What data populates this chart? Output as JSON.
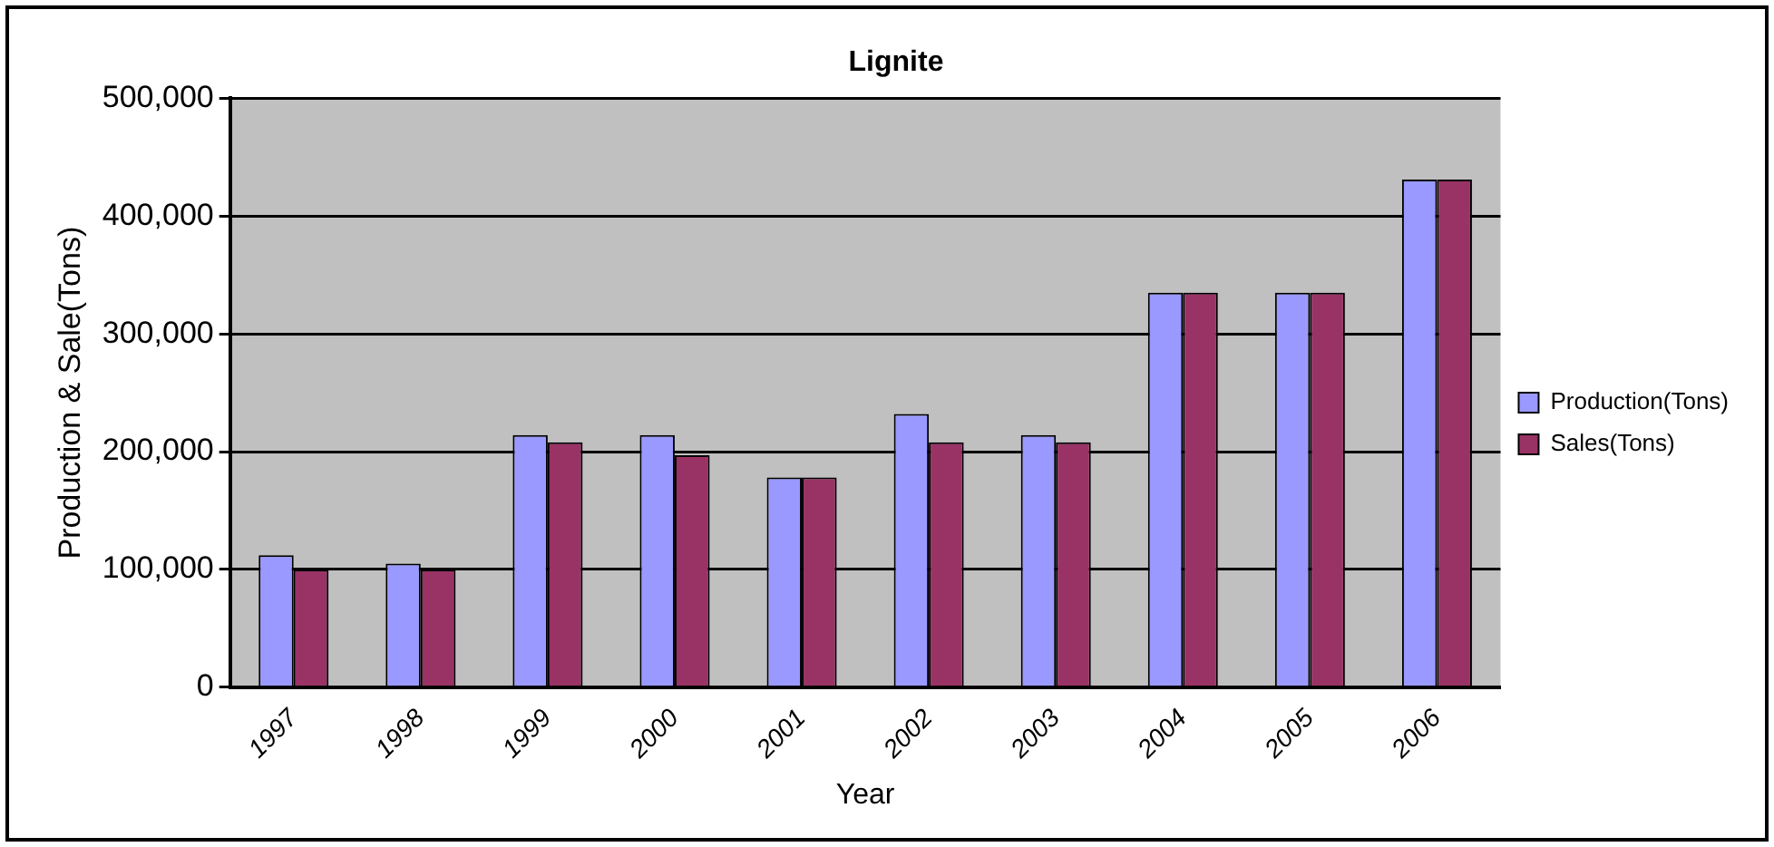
{
  "chart_data": {
    "type": "bar",
    "title": "Lignite",
    "xlabel": "Year",
    "ylabel": "Production & Sale(Tons)",
    "categories": [
      "1997",
      "1998",
      "1999",
      "2000",
      "2001",
      "2002",
      "2003",
      "2004",
      "2005",
      "2006"
    ],
    "series": [
      {
        "name": "Production(Tons)",
        "color": "#9999ff",
        "values": [
          112000,
          105000,
          214000,
          214000,
          178000,
          232000,
          214000,
          335000,
          335000,
          431000
        ]
      },
      {
        "name": "Sales(Tons)",
        "color": "#993366",
        "values": [
          100000,
          100000,
          208000,
          197000,
          178000,
          208000,
          208000,
          335000,
          335000,
          431000
        ]
      }
    ],
    "ylim": [
      0,
      500000
    ],
    "yticks": [
      {
        "value": 0,
        "label": "0"
      },
      {
        "value": 100000,
        "label": "100,000"
      },
      {
        "value": 200000,
        "label": "200,000"
      },
      {
        "value": 300000,
        "label": "300,000"
      },
      {
        "value": 400000,
        "label": "400,000"
      },
      {
        "value": 500000,
        "label": "500,000"
      }
    ],
    "grid": "y",
    "legend": "right"
  }
}
